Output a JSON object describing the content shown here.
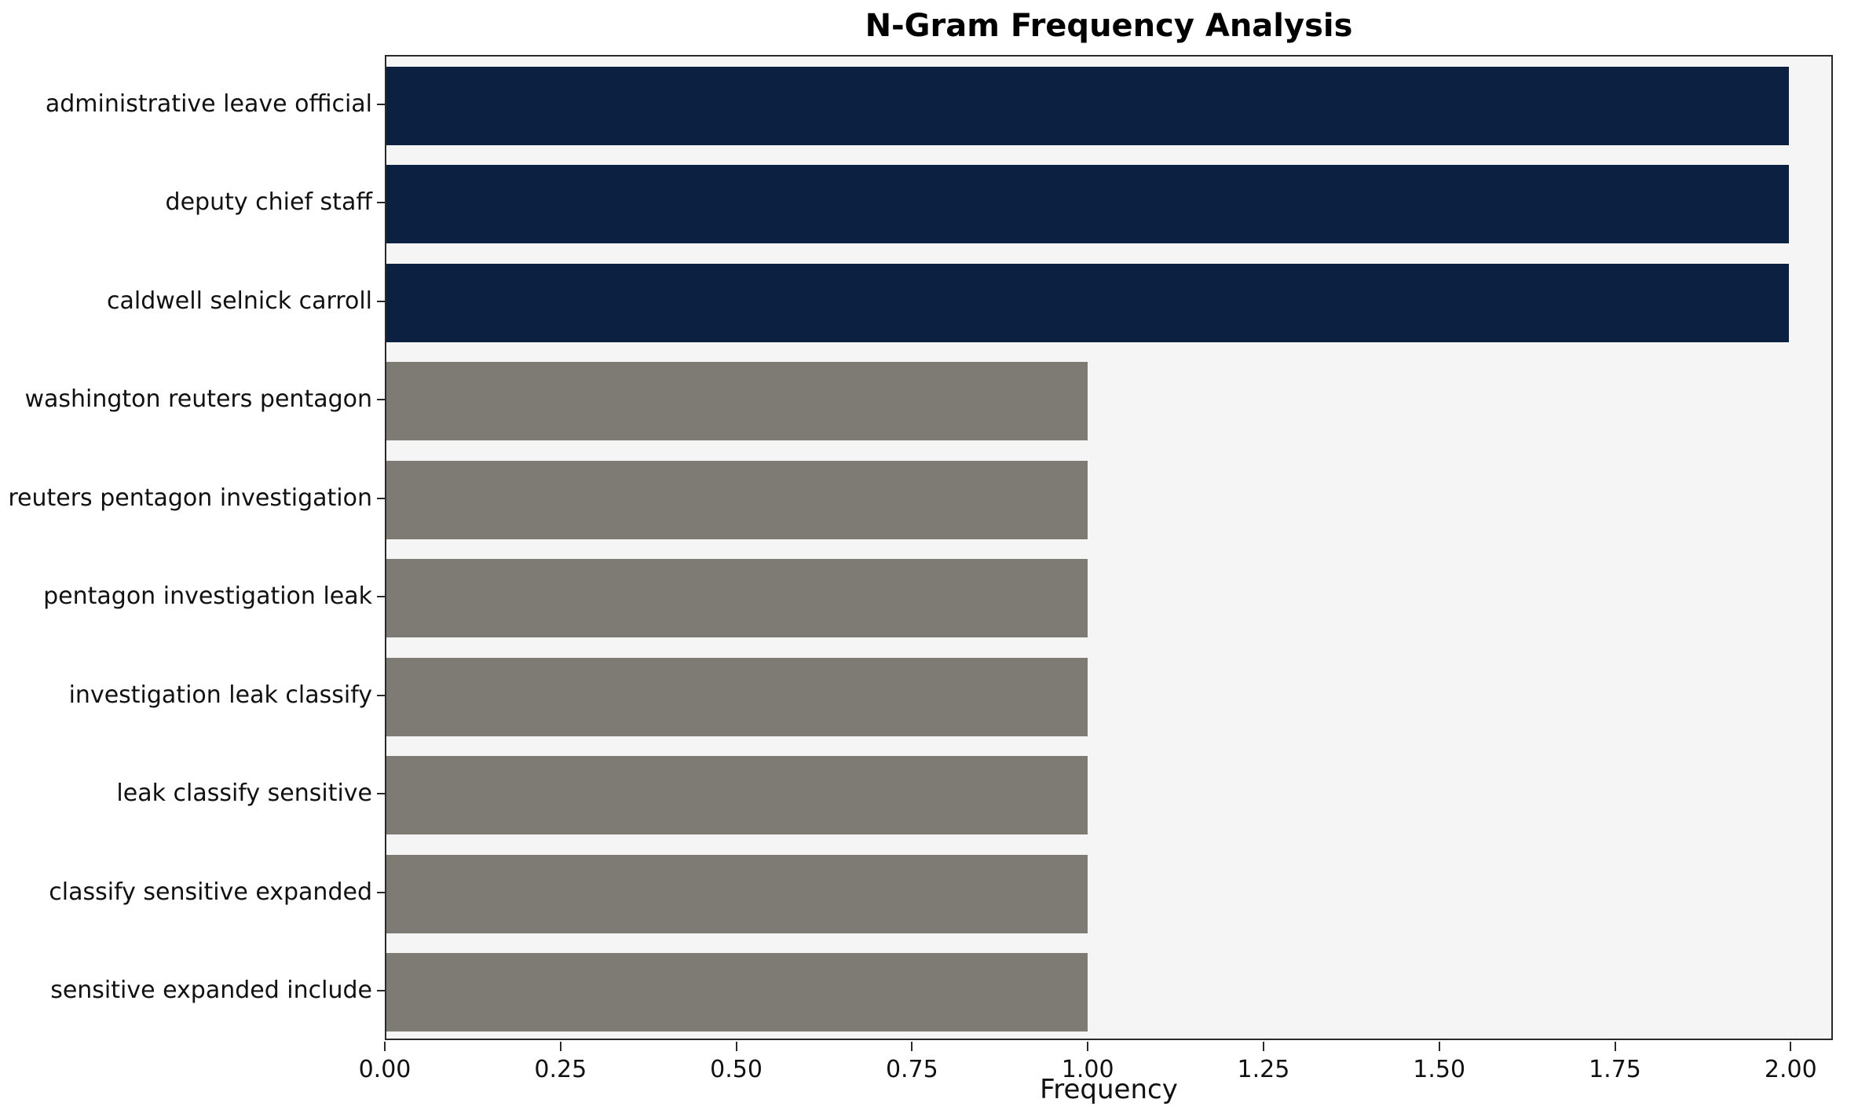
{
  "chart_data": {
    "type": "bar",
    "orientation": "horizontal",
    "title": "N-Gram Frequency Analysis",
    "xlabel": "Frequency",
    "ylabel": "",
    "categories": [
      "administrative leave official",
      "deputy chief staff",
      "caldwell selnick carroll",
      "washington reuters pentagon",
      "reuters pentagon investigation",
      "pentagon investigation leak",
      "investigation leak classify",
      "leak classify sensitive",
      "classify sensitive expanded",
      "sensitive expanded include"
    ],
    "values": [
      2,
      2,
      2,
      1,
      1,
      1,
      1,
      1,
      1,
      1
    ],
    "bar_colors": [
      "#0c2142",
      "#0c2142",
      "#0c2142",
      "#7e7b74",
      "#7e7b74",
      "#7e7b74",
      "#7e7b74",
      "#7e7b74",
      "#7e7b74",
      "#7e7b74"
    ],
    "xlim": [
      0,
      2.06
    ],
    "x_ticks": [
      0.0,
      0.25,
      0.5,
      0.75,
      1.0,
      1.25,
      1.5,
      1.75,
      2.0
    ],
    "x_tick_labels": [
      "0.00",
      "0.25",
      "0.50",
      "0.75",
      "1.00",
      "1.25",
      "1.50",
      "1.75",
      "2.00"
    ],
    "grid": false,
    "legend": "none",
    "colors": {
      "highlight": "#0c2142",
      "default": "#7e7b74",
      "plot_background": "#f5f5f5",
      "page_background": "#ffffff",
      "spine": "#2a2a2a",
      "text": "#111111"
    }
  }
}
